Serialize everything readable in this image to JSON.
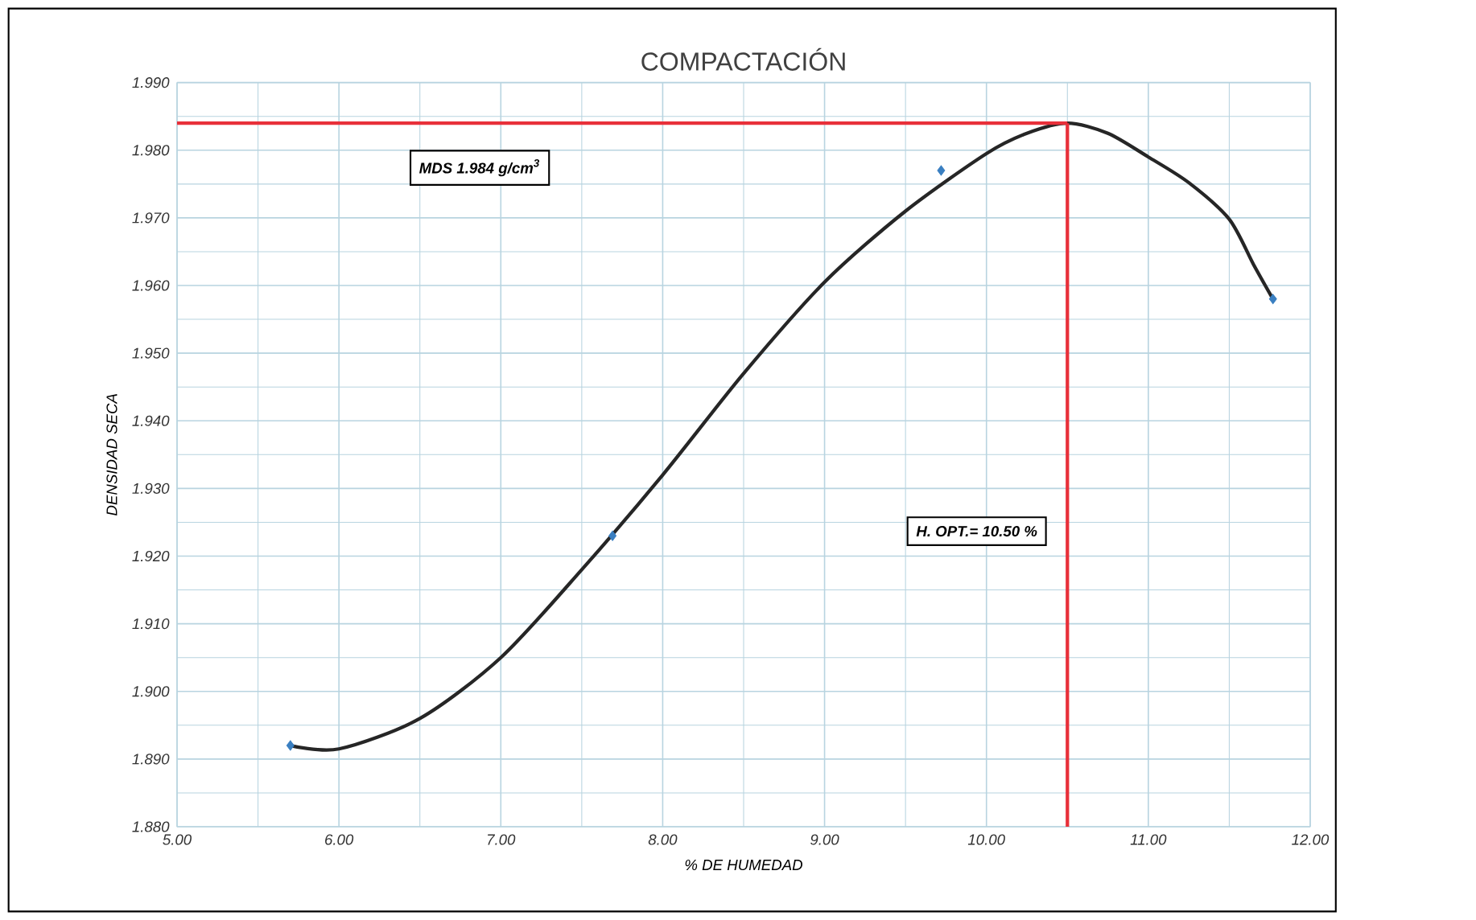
{
  "chart_data": {
    "type": "scatter",
    "title": "COMPACTACIÓN",
    "xlabel": "% DE HUMEDAD",
    "ylabel": "DENSIDAD SECA",
    "xlim": [
      5,
      12
    ],
    "ylim": [
      1.88,
      1.99
    ],
    "xticks": [
      {
        "value": 5,
        "label": "5.00"
      },
      {
        "value": 6,
        "label": "6.00"
      },
      {
        "value": 7,
        "label": "7.00"
      },
      {
        "value": 8,
        "label": "8.00"
      },
      {
        "value": 9,
        "label": "9.00"
      },
      {
        "value": 10,
        "label": "10.00"
      },
      {
        "value": 11,
        "label": "11.00"
      },
      {
        "value": 12,
        "label": "12.00"
      }
    ],
    "yticks": [
      {
        "value": 1.88,
        "label": "1.880"
      },
      {
        "value": 1.89,
        "label": "1.890"
      },
      {
        "value": 1.9,
        "label": "1.900"
      },
      {
        "value": 1.91,
        "label": "1.910"
      },
      {
        "value": 1.92,
        "label": "1.920"
      },
      {
        "value": 1.93,
        "label": "1.930"
      },
      {
        "value": 1.94,
        "label": "1.940"
      },
      {
        "value": 1.95,
        "label": "1.950"
      },
      {
        "value": 1.96,
        "label": "1.960"
      },
      {
        "value": 1.97,
        "label": "1.970"
      },
      {
        "value": 1.98,
        "label": "1.980"
      },
      {
        "value": 1.99,
        "label": "1.990"
      }
    ],
    "grid": true,
    "series": [
      {
        "type": "line",
        "color": "#262626",
        "marker": "none",
        "x": [
          5.7,
          6.0,
          6.5,
          7.0,
          7.5,
          8.0,
          8.5,
          9.0,
          9.5,
          10.0,
          10.25,
          10.5,
          10.75,
          11.0,
          11.25,
          11.5,
          11.65,
          11.77
        ],
        "values": [
          1.892,
          1.8915,
          1.896,
          1.905,
          1.918,
          1.932,
          1.947,
          1.9605,
          1.971,
          1.9795,
          1.9825,
          1.984,
          1.9825,
          1.979,
          1.9752,
          1.9698,
          1.9631,
          1.958
        ]
      },
      {
        "color": "#3a7fc1",
        "marker": "diamond",
        "x": [
          5.7,
          7.69,
          9.72,
          11.77
        ],
        "values": [
          1.892,
          1.923,
          1.977,
          1.958
        ]
      }
    ],
    "ref_lines": [
      {
        "axis": "y",
        "value": 1.984,
        "label": "MDS 1.984 g/cm$^{3}$",
        "color": "#e8303a"
      },
      {
        "axis": "x",
        "value": 10.5,
        "label": "H. OPT.= 10.50 %",
        "color": "#e8303a"
      }
    ]
  }
}
